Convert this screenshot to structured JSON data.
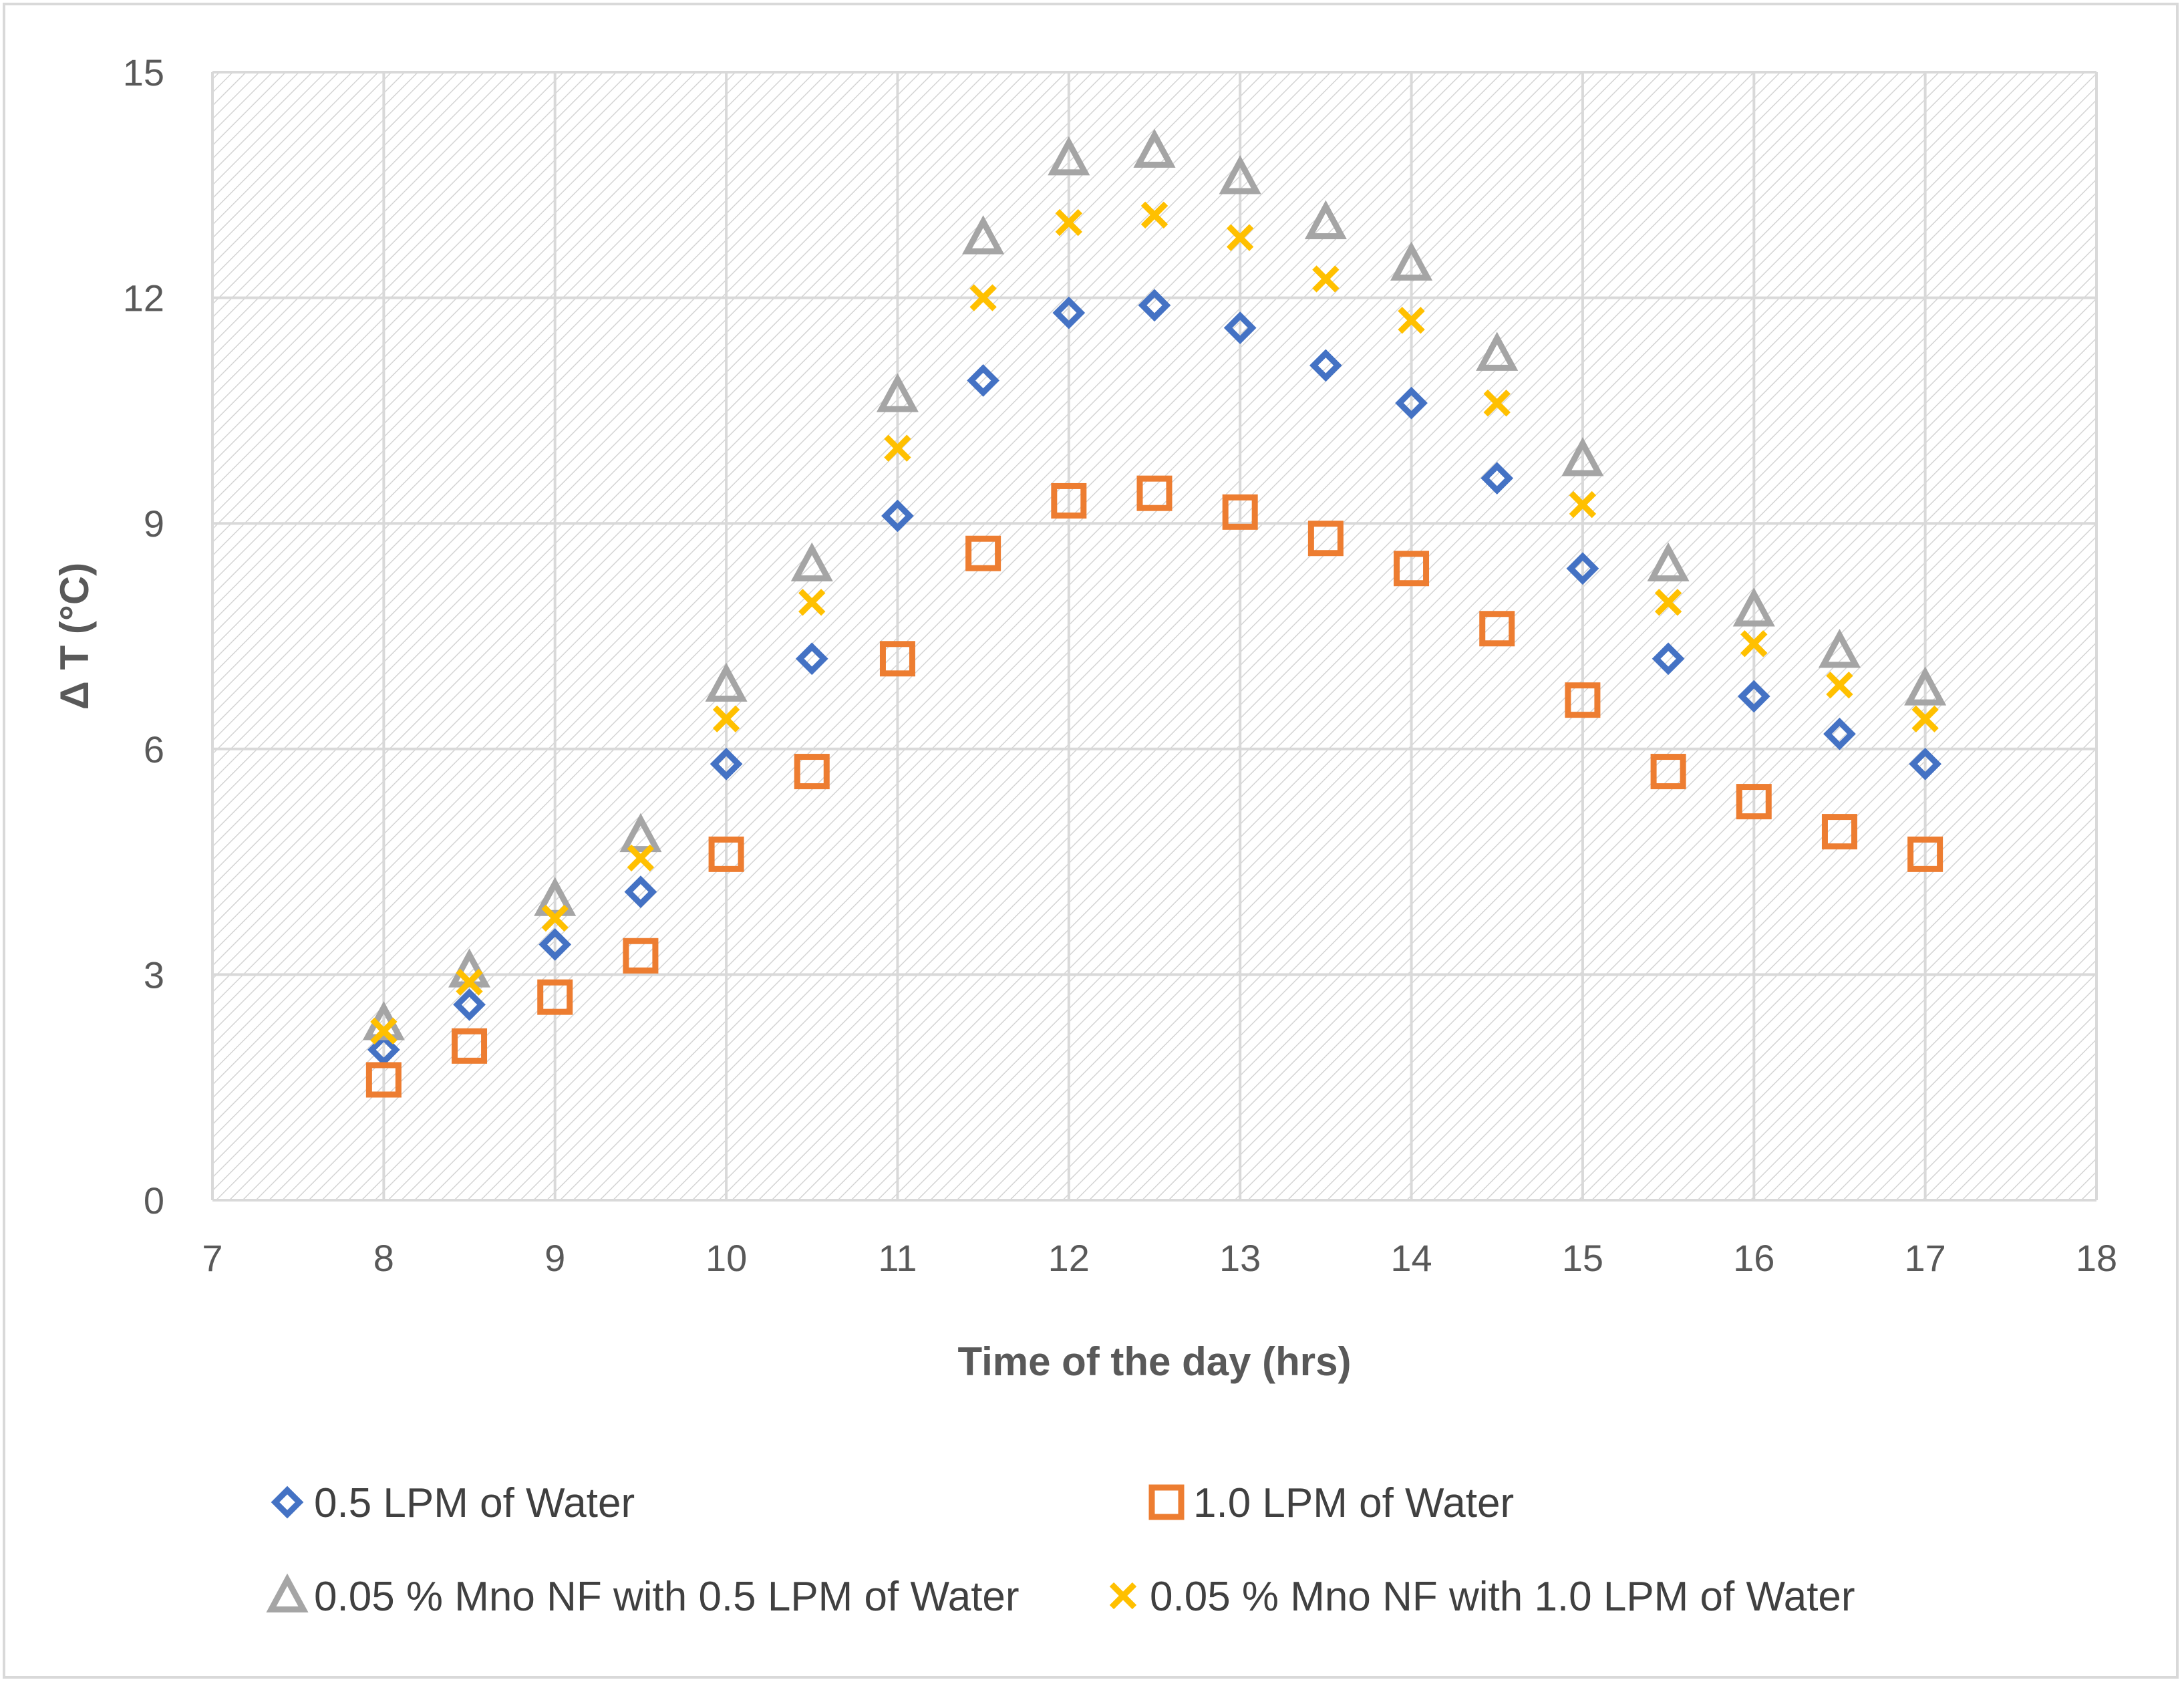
{
  "chart_data": {
    "type": "scatter",
    "title": "",
    "xlabel": "Time of the day (hrs)",
    "ylabel": "Δ T (°C)",
    "xlim": [
      7,
      18
    ],
    "ylim": [
      0,
      15
    ],
    "xticks": [
      7,
      8,
      9,
      10,
      11,
      12,
      13,
      14,
      15,
      16,
      17,
      18
    ],
    "yticks": [
      0,
      3,
      6,
      9,
      12,
      15
    ],
    "grid": true,
    "plot_background": "diagonal-hatch",
    "legend_position": "bottom",
    "x": [
      8,
      8.5,
      9,
      9.5,
      10,
      10.5,
      11,
      11.5,
      12,
      12.5,
      13,
      13.5,
      14,
      14.5,
      15,
      15.5,
      16,
      16.5,
      17
    ],
    "series": [
      {
        "name": "0.5 LPM of Water",
        "marker": "diamond",
        "color": "#4472C4",
        "values": [
          2.0,
          2.6,
          3.4,
          4.1,
          5.8,
          7.2,
          9.1,
          10.9,
          11.8,
          11.9,
          11.6,
          11.1,
          10.6,
          9.6,
          8.4,
          7.2,
          6.7,
          6.2,
          5.8
        ]
      },
      {
        "name": "1.0 LPM of Water",
        "marker": "square",
        "color": "#ED7D31",
        "values": [
          1.6,
          2.05,
          2.7,
          3.25,
          4.6,
          5.7,
          7.2,
          8.6,
          9.3,
          9.4,
          9.15,
          8.8,
          8.4,
          7.6,
          6.65,
          5.7,
          5.3,
          4.9,
          4.6
        ]
      },
      {
        "name": "0.05 % Mno NF with 0.5 LPM of Water",
        "marker": "triangle",
        "color": "#A5A5A5",
        "values": [
          2.35,
          3.05,
          4.0,
          4.85,
          6.85,
          8.45,
          10.7,
          12.8,
          13.85,
          13.95,
          13.6,
          13.0,
          12.45,
          11.25,
          9.85,
          8.45,
          7.85,
          7.3,
          6.8
        ]
      },
      {
        "name": "0.05 % Mno NF with 1.0 LPM of Water",
        "marker": "x",
        "color": "#FFC000",
        "values": [
          2.25,
          2.9,
          3.75,
          4.55,
          6.4,
          7.95,
          10.0,
          12.0,
          13.0,
          13.1,
          12.8,
          12.25,
          11.7,
          10.6,
          9.25,
          7.95,
          7.4,
          6.85,
          6.4
        ]
      }
    ]
  }
}
